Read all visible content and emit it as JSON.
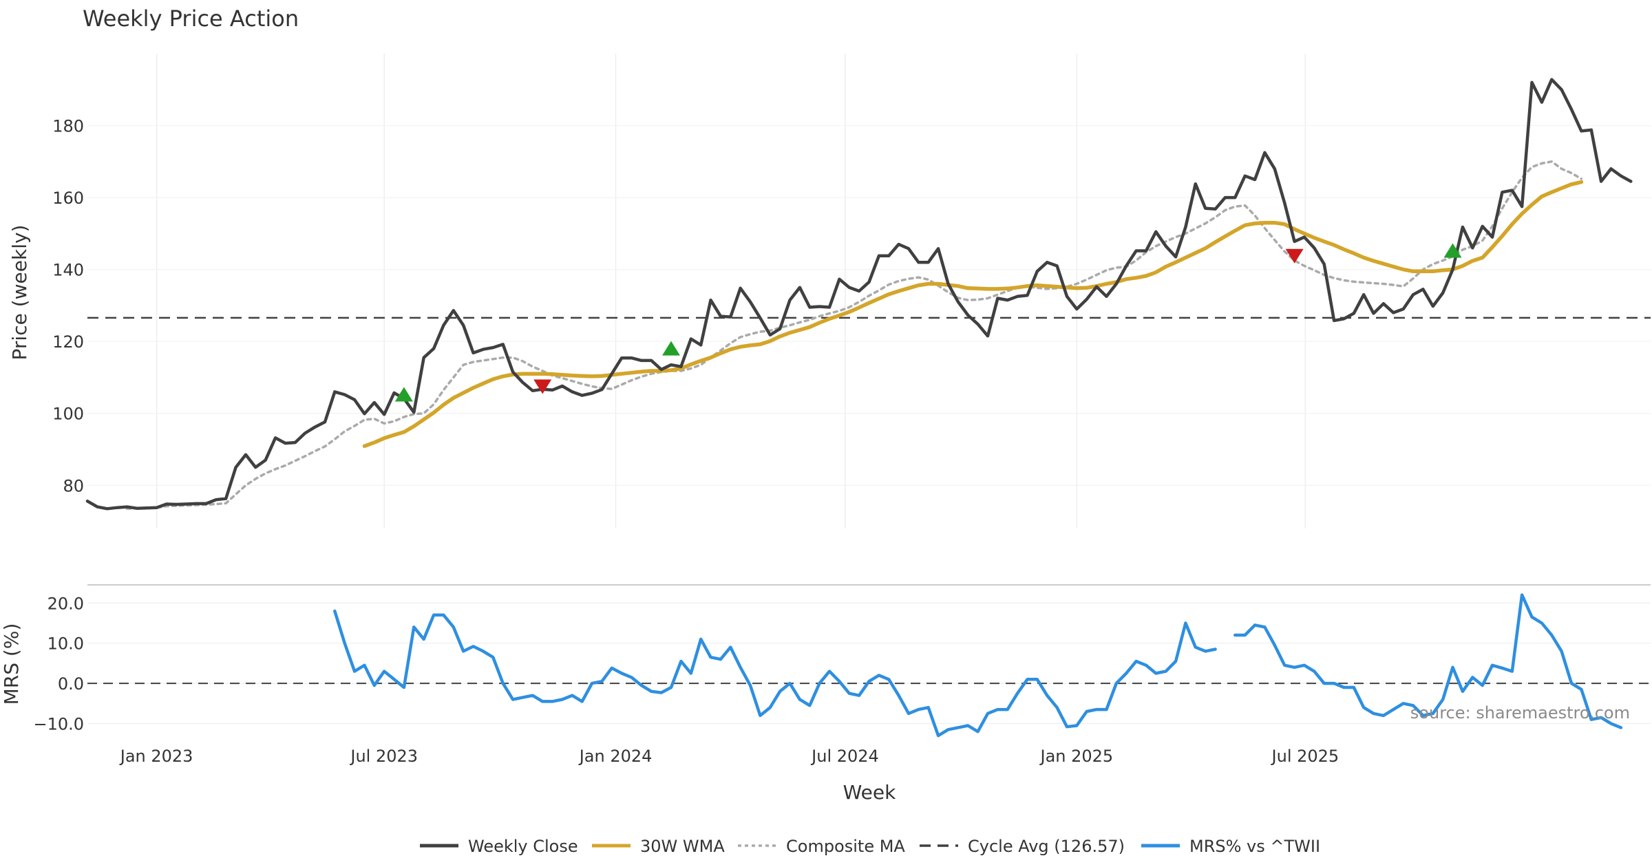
{
  "chart_data": [
    {
      "type": "line",
      "title": "Weekly Price Action",
      "ylabel": "Price (weekly)",
      "ylim": [
        68,
        200
      ],
      "yticks": [
        80,
        100,
        120,
        140,
        160,
        180
      ],
      "x_start_week": 0,
      "weeks_total": 158,
      "reference_line": {
        "name": "Cycle Avg (126.57)",
        "value": 126.57
      },
      "series": [
        {
          "name": "Weekly Close",
          "color": "#404040",
          "start_week": 0,
          "values": [
            75.6,
            74.0,
            73.5,
            73.8,
            74.0,
            73.6,
            73.7,
            73.8,
            74.8,
            74.7,
            74.8,
            74.9,
            74.9,
            76.0,
            76.3,
            85.0,
            88.5,
            85.0,
            87.0,
            93.2,
            91.7,
            91.9,
            94.5,
            96.2,
            97.6,
            106.0,
            105.2,
            103.8,
            99.9,
            103.0,
            99.7,
            105.7,
            104.1,
            100.3,
            115.5,
            118.0,
            124.5,
            128.6,
            124.5,
            116.8,
            117.8,
            118.3,
            119.2,
            111.5,
            108.6,
            106.3,
            106.7,
            106.5,
            107.6,
            106.0,
            105.0,
            105.6,
            106.6,
            111.0,
            115.4,
            115.4,
            114.7,
            114.7,
            112.2,
            113.5,
            113.0,
            120.7,
            119.0,
            131.5,
            127.0,
            126.8,
            134.8,
            131.0,
            126.5,
            121.8,
            123.5,
            131.5,
            135.0,
            129.5,
            129.7,
            129.5,
            137.3,
            135.0,
            134.0,
            136.5,
            143.8,
            143.8,
            147.0,
            145.8,
            142.0,
            142.0,
            145.8,
            136.0,
            131.0,
            127.3,
            124.8,
            121.5,
            132.0,
            131.5,
            132.5,
            132.8,
            139.5,
            142.0,
            141.0,
            132.5,
            129.0,
            131.7,
            135.2,
            132.5,
            136.0,
            141.0,
            145.2,
            145.2,
            150.5,
            146.5,
            143.5,
            151.8,
            163.8,
            157.0,
            156.8,
            160.0,
            160.0,
            166.0,
            165.0,
            172.5,
            168.0,
            158.5,
            147.8,
            149.0,
            146.0,
            141.5,
            125.8,
            126.3,
            127.8,
            133.0,
            127.8,
            130.5,
            128.0,
            129.0,
            133.0,
            134.5,
            129.8,
            133.5,
            140.0,
            151.8,
            146.0,
            152.0,
            149.0,
            161.5,
            162.0,
            157.5,
            192.0,
            186.5,
            192.8,
            190.0,
            184.5,
            178.5,
            178.8,
            164.5,
            168.0,
            166.0,
            164.5
          ]
        },
        {
          "name": "30W WMA",
          "color": "#D4A52A",
          "start_week": 28,
          "values": [
            90.9,
            91.9,
            93.1,
            94.0,
            94.8,
            96.4,
            98.3,
            100.2,
            102.4,
            104.3,
            105.7,
            107.1,
            108.3,
            109.5,
            110.3,
            110.8,
            111.0,
            111.0,
            111.0,
            110.9,
            110.7,
            110.5,
            110.4,
            110.3,
            110.4,
            110.7,
            111.0,
            111.3,
            111.6,
            111.8,
            111.8,
            112.0,
            112.5,
            113.6,
            114.6,
            115.5,
            116.7,
            117.8,
            118.5,
            118.9,
            119.2,
            120.1,
            121.4,
            122.4,
            123.2,
            124.0,
            125.2,
            126.3,
            127.2,
            128.2,
            129.4,
            130.7,
            131.9,
            133.1,
            134.0,
            134.8,
            135.6,
            136.0,
            136.0,
            135.7,
            135.4,
            134.8,
            134.7,
            134.6,
            134.6,
            134.7,
            135.0,
            135.4,
            135.6,
            135.4,
            135.2,
            135.0,
            134.8,
            134.9,
            135.4,
            136.0,
            136.5,
            137.3,
            137.7,
            138.2,
            139.2,
            140.8,
            142.0,
            143.3,
            144.6,
            145.9,
            147.6,
            149.2,
            150.8,
            152.3,
            152.8,
            153.0,
            153.0,
            152.6,
            151.2,
            150.0,
            148.8,
            147.8,
            146.8,
            145.6,
            144.5,
            143.3,
            142.4,
            141.6,
            140.8,
            140.0,
            139.5,
            139.5,
            139.5,
            139.8,
            140.0,
            141.0,
            142.4,
            143.3,
            146.2,
            149.3,
            152.6,
            155.5,
            158.0,
            160.3,
            161.5,
            162.6,
            163.7,
            164.3
          ]
        },
        {
          "name": "Composite MA",
          "color": "#AAAAAA",
          "start_week": 4,
          "values": [
            73.5,
            73.6,
            73.7,
            73.8,
            74.2,
            74.3,
            74.4,
            74.5,
            74.6,
            74.8,
            75.0,
            77.5,
            80.0,
            81.8,
            83.3,
            84.5,
            85.5,
            86.8,
            88.1,
            89.5,
            90.8,
            92.8,
            95.0,
            96.5,
            98.2,
            98.5,
            97.2,
            97.8,
            99.0,
            99.8,
            100.0,
            102.5,
            106.5,
            110.0,
            113.5,
            114.3,
            114.7,
            115.1,
            115.5,
            115.5,
            114.5,
            113.0,
            111.8,
            110.5,
            109.8,
            109.0,
            108.2,
            107.5,
            107.0,
            106.8,
            108.0,
            109.2,
            110.2,
            111.0,
            111.5,
            111.8,
            111.8,
            112.5,
            113.5,
            115.5,
            117.5,
            119.5,
            121.2,
            122.0,
            122.7,
            123.0,
            123.8,
            124.5,
            125.3,
            126.0,
            127.0,
            127.8,
            128.5,
            129.5,
            131.0,
            132.7,
            134.2,
            135.8,
            136.8,
            137.4,
            137.8,
            137.2,
            135.5,
            133.7,
            132.1,
            131.5,
            131.6,
            132.0,
            133.0,
            134.0,
            135.0,
            135.2,
            134.9,
            134.6,
            134.8,
            135.2,
            136.0,
            137.2,
            138.5,
            139.8,
            140.5,
            140.8,
            142.5,
            144.8,
            146.5,
            147.8,
            149.0,
            150.0,
            151.4,
            152.8,
            154.5,
            156.5,
            157.5,
            157.8,
            155.0,
            151.5,
            148.2,
            145.0,
            142.5,
            141.0,
            139.8,
            138.5,
            137.6,
            137.0,
            136.6,
            136.4,
            136.2,
            136.0,
            135.7,
            135.3,
            137.5,
            140.0,
            141.5,
            142.5,
            143.6,
            145.5,
            146.5,
            148.0,
            152.0,
            157.0,
            161.5,
            165.5,
            168.5,
            169.5,
            170.0,
            168.0,
            166.8,
            165.2
          ]
        }
      ],
      "markers": [
        {
          "type": "buy",
          "week": 32,
          "value": 105.2,
          "color": "#22A02A"
        },
        {
          "type": "sell",
          "week": 46,
          "value": 107.5,
          "color": "#CC1A1A"
        },
        {
          "type": "buy",
          "week": 59,
          "value": 118.0,
          "color": "#22A02A"
        },
        {
          "type": "sell",
          "week": 122,
          "value": 143.8,
          "color": "#CC1A1A"
        },
        {
          "type": "buy",
          "week": 138,
          "value": 145.2,
          "color": "#22A02A"
        }
      ],
      "grid": true
    },
    {
      "type": "line",
      "ylabel": "MRS (%)",
      "xlabel": "Week",
      "ylim": [
        -13.5,
        24.5
      ],
      "yticks": [
        -10.0,
        0.0,
        10.0,
        20.0
      ],
      "ytick_labels": [
        "−10.0",
        "0.0",
        "10.0",
        "20.0"
      ],
      "zero_line": 0,
      "series": [
        {
          "name": "MRS% vs ^TWII",
          "color": "#2E8FE0",
          "start_week": 25,
          "values": [
            18.0,
            10.0,
            3.0,
            4.5,
            -0.5,
            3.0,
            1.0,
            -1.0,
            14.0,
            11.0,
            17.0,
            17.0,
            14.0,
            8.0,
            9.2,
            8.0,
            6.5,
            0.0,
            -4.0,
            -3.5,
            -3.0,
            -4.5,
            -4.5,
            -4.0,
            -3.0,
            -4.5,
            0.0,
            0.5,
            3.8,
            2.5,
            1.5,
            -0.5,
            -2.0,
            -2.3,
            -1.0,
            5.5,
            2.5,
            11.0,
            6.5,
            6.0,
            9.0,
            4.0,
            -0.5,
            -8.0,
            -6.0,
            -2.0,
            0.0,
            -4.0,
            -5.5,
            0.0,
            3.0,
            0.5,
            -2.5,
            -3.0,
            0.5,
            2.0,
            1.0,
            -3.0,
            -7.5,
            -6.5,
            -6.0,
            -13.0,
            -11.5,
            -11.0,
            -10.5,
            -12.0,
            -7.5,
            -6.5,
            -6.5,
            -2.5,
            1.0,
            1.0,
            -3.0,
            -6.0,
            -10.8,
            -10.5,
            -7.0,
            -6.5,
            -6.5,
            0.0,
            2.5,
            5.5,
            4.5,
            2.5,
            3.0,
            5.5,
            15.0,
            9.0,
            8.0,
            8.5,
            null,
            12.0,
            12.0,
            14.5,
            14.0,
            9.5,
            4.5,
            4.0,
            4.5,
            3.0,
            0.0,
            0.0,
            -1.0,
            -1.0,
            -6.0,
            -7.5,
            -8.0,
            -6.5,
            -5.0,
            -5.5,
            -8.0,
            -7.5,
            -4.0,
            4.0,
            -2.0,
            1.5,
            -0.5,
            4.5,
            3.8,
            3.0,
            22.0,
            16.5,
            15.0,
            12.0,
            8.0,
            0.0,
            -1.5,
            -9.0,
            -8.5,
            -10.0,
            -11.0
          ]
        }
      ],
      "grid": true
    }
  ],
  "x_axis": {
    "label": "Week",
    "tick_labels": [
      "Jan 2023",
      "Jul 2023",
      "Jan 2024",
      "Jul 2024",
      "Jan 2025",
      "Jul 2025"
    ],
    "tick_weeks": [
      7,
      30,
      53.4,
      76.6,
      100,
      123.1
    ]
  },
  "legend": {
    "position": "bottom-center",
    "entries": [
      {
        "label": "Weekly Close",
        "color": "#404040",
        "style": "solid"
      },
      {
        "label": "30W WMA",
        "color": "#D4A52A",
        "style": "solid"
      },
      {
        "label": "Composite MA",
        "color": "#AAAAAA",
        "style": "dotted"
      },
      {
        "label": "Cycle Avg (126.57)",
        "color": "#404040",
        "style": "dashed"
      },
      {
        "label": "MRS% vs ^TWII",
        "color": "#2E8FE0",
        "style": "solid"
      }
    ]
  },
  "watermark": "source: sharemaestro.com"
}
